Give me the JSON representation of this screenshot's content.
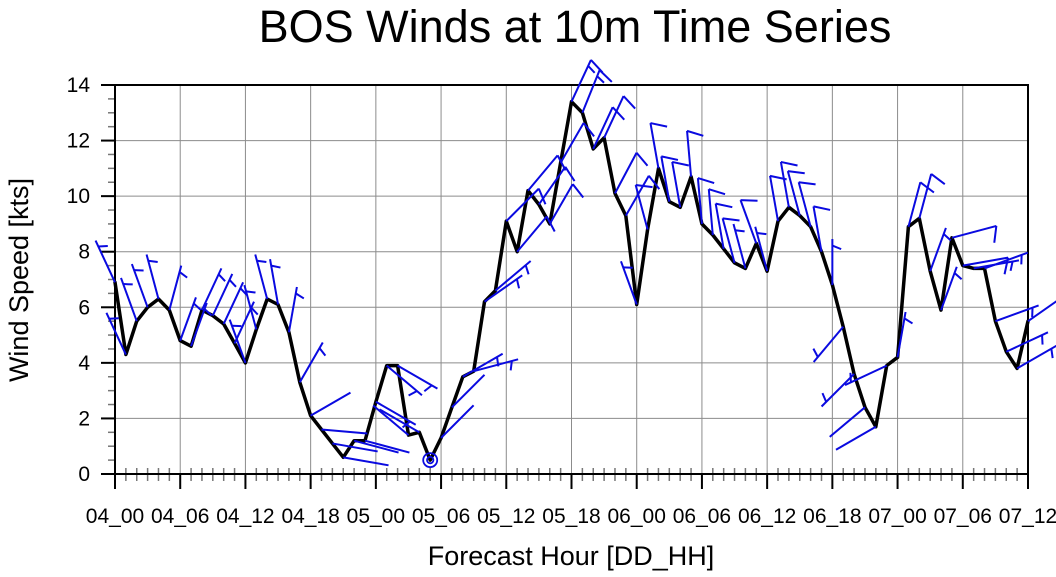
{
  "title": "BOS Winds at 10m Time Series",
  "x_axis": {
    "label": "Forecast Hour [DD_HH]",
    "tick_labels": [
      "04_00",
      "04_06",
      "04_12",
      "04_18",
      "05_00",
      "05_06",
      "05_12",
      "05_18",
      "06_00",
      "06_06",
      "06_12",
      "06_18",
      "07_00",
      "07_06",
      "07_12"
    ]
  },
  "y_axis": {
    "label": "Wind Speed [kts]",
    "tick_labels": [
      "0",
      "2",
      "4",
      "6",
      "8",
      "10",
      "12",
      "14"
    ]
  },
  "colors": {
    "line": "#000000",
    "barb": "#0a0ae0",
    "grid": "#8c8c8c",
    "tick_minor": "#777777",
    "axis": "#000000",
    "text": "#000000",
    "background": "#ffffff"
  },
  "chart_data": {
    "type": "line",
    "title": "BOS Winds at 10m Time Series",
    "xlabel": "Forecast Hour [DD_HH]",
    "ylabel": "Wind Speed [kts]",
    "x_start_label": "04_00",
    "x_end_label": "07_12",
    "xlim_hours": [
      0,
      84
    ],
    "x_major_tick_interval_hours": 6,
    "x_minor_tick_interval_hours": 1,
    "ylim": [
      0,
      14
    ],
    "y_major_tick_interval": 2,
    "y_minor_tick_interval": 0.5,
    "grid": true,
    "series": [
      {
        "name": "wind_speed_kts",
        "hourly_values": [
          6.9,
          4.3,
          5.5,
          6.0,
          6.3,
          5.9,
          4.8,
          4.6,
          5.9,
          5.7,
          5.4,
          4.7,
          4.0,
          5.2,
          6.3,
          6.1,
          5.1,
          3.3,
          2.1,
          1.6,
          1.1,
          0.6,
          1.2,
          1.2,
          2.6,
          3.9,
          3.9,
          1.4,
          1.5,
          0.5,
          1.3,
          2.4,
          3.5,
          3.7,
          6.2,
          6.6,
          9.1,
          8.0,
          10.2,
          9.7,
          9.0,
          11.2,
          13.4,
          13.0,
          11.7,
          12.1,
          10.1,
          9.3,
          6.1,
          8.8,
          11.0,
          9.8,
          9.6,
          10.7,
          9.0,
          8.6,
          8.1,
          7.6,
          7.4,
          8.3,
          7.3,
          9.1,
          9.6,
          9.3,
          8.9,
          8.0,
          6.8,
          5.3,
          3.6,
          2.4,
          1.7,
          3.9,
          4.2,
          8.9,
          9.2,
          7.3,
          5.9,
          8.5,
          7.5,
          7.4,
          7.4,
          5.5,
          4.4,
          3.8,
          5.5
        ]
      }
    ],
    "wind_barbs": {
      "feather_unit_kts": 5,
      "full_barb_kts": 10,
      "calm_hours": [
        29
      ],
      "hourly_direction_deg_from": [
        335,
        335,
        340,
        340,
        345,
        15,
        20,
        20,
        25,
        25,
        25,
        25,
        340,
        345,
        345,
        350,
        10,
        30,
        60,
        95,
        100,
        100,
        105,
        105,
        120,
        130,
        120,
        310,
        300,
        0,
        45,
        45,
        60,
        75,
        55,
        50,
        45,
        40,
        40,
        35,
        30,
        30,
        25,
        22,
        25,
        25,
        28,
        30,
        340,
        345,
        350,
        350,
        350,
        355,
        355,
        355,
        350,
        345,
        345,
        340,
        345,
        350,
        350,
        345,
        345,
        350,
        0,
        220,
        225,
        230,
        240,
        245,
        10,
        15,
        15,
        20,
        20,
        75,
        80,
        80,
        70,
        70,
        65,
        60,
        55
      ]
    }
  }
}
